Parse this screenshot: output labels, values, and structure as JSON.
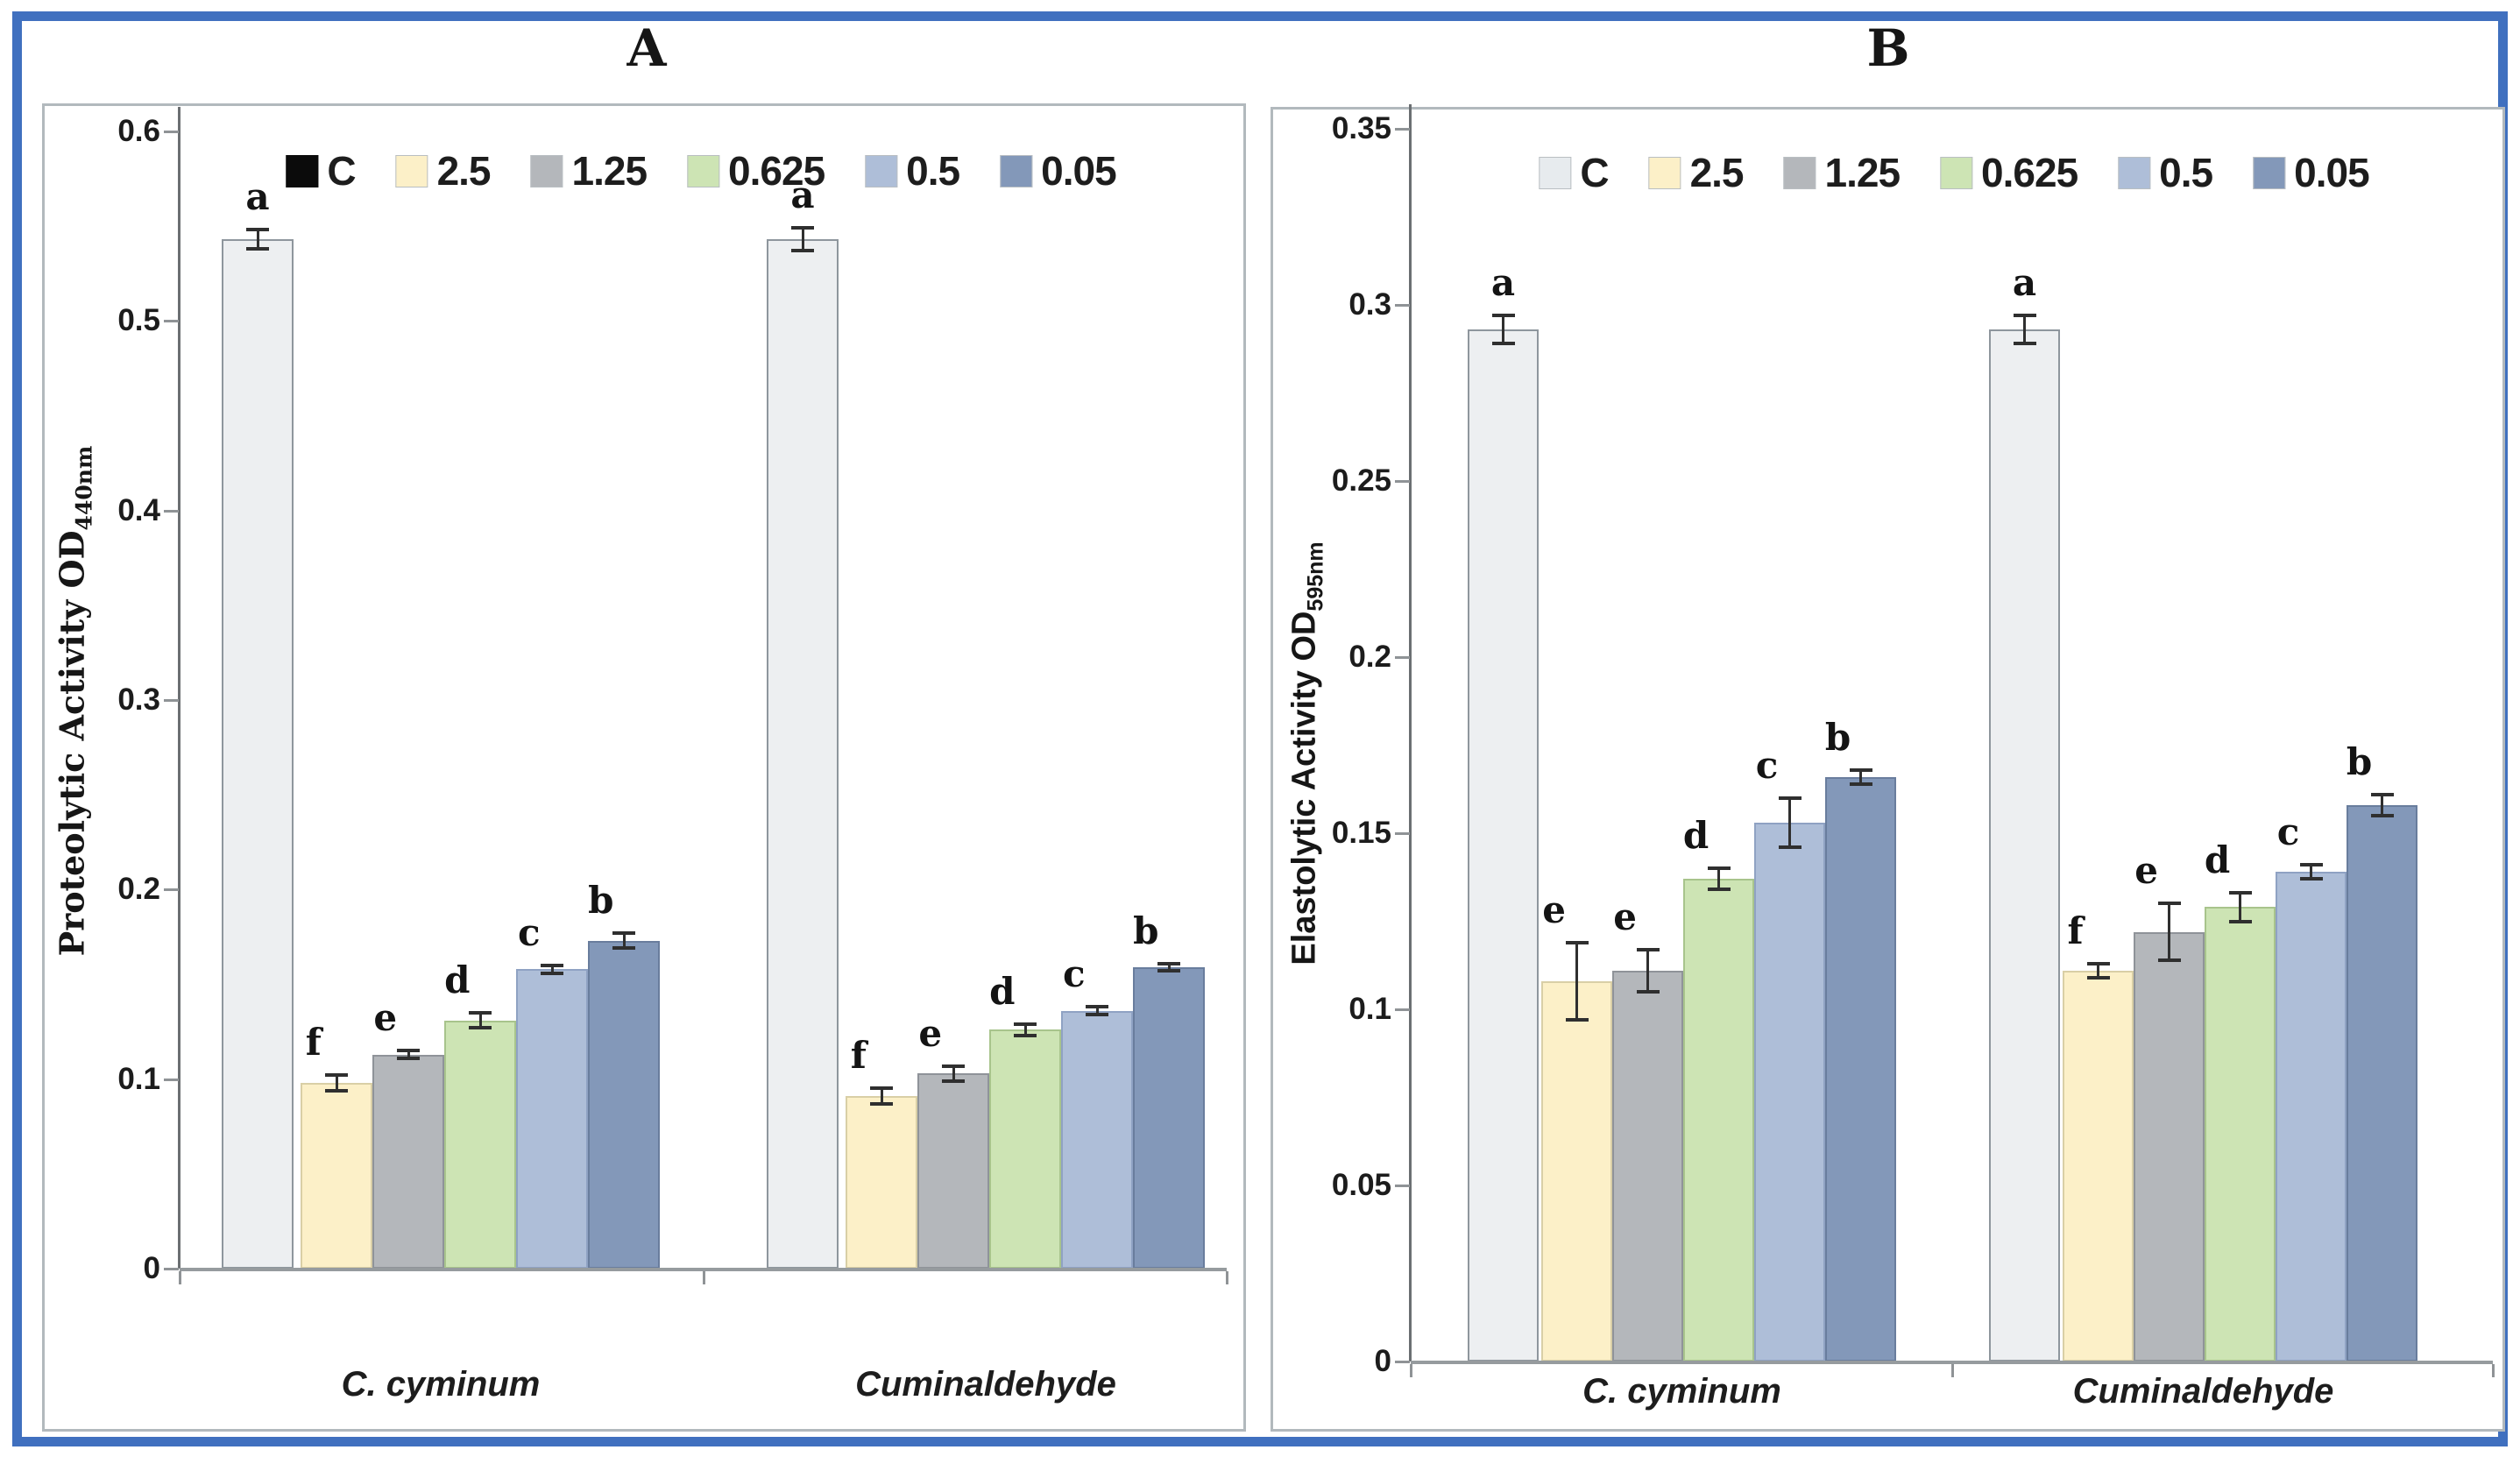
{
  "figure": {
    "outer_border_color": "#4070bf",
    "panel_border_color": "#b2b9bd",
    "background": "#ffffff",
    "error_bar_color": "#2f2f2f"
  },
  "chart_data": [
    {
      "type": "bar",
      "panel_label": "A",
      "ylabel": "Proteolytic Activity OD",
      "ylabel_subscript": "440nm",
      "ylim": [
        0,
        0.6
      ],
      "ytick_labels": [
        "0.6",
        "0.5",
        "0.4",
        "0.3",
        "0.2",
        "0.1",
        "0"
      ],
      "categories": [
        "C. cyminum",
        "Cuminaldehyde"
      ],
      "legend_position": "top-center",
      "grid": false,
      "series": [
        {
          "name": "C",
          "fill": "#edeff1",
          "border": "#8e969d",
          "legend_swatch": "#0b0b0b",
          "values": [
            0.543,
            0.543
          ],
          "errors": [
            0.005,
            0.006
          ],
          "letters": [
            "a",
            "a"
          ]
        },
        {
          "name": "2.5",
          "fill": "#fcf0c8",
          "border": "#d9cfa6",
          "values": [
            0.098,
            0.091
          ],
          "errors": [
            0.004,
            0.004
          ],
          "letters": [
            "f",
            "f"
          ]
        },
        {
          "name": "1.25",
          "fill": "#b4b7bb",
          "border": "#8f9399",
          "values": [
            0.113,
            0.103
          ],
          "errors": [
            0.002,
            0.004
          ],
          "letters": [
            "e",
            "e"
          ]
        },
        {
          "name": "0.625",
          "fill": "#cde4b4",
          "border": "#a8c48c",
          "values": [
            0.131,
            0.126
          ],
          "errors": [
            0.004,
            0.003
          ],
          "letters": [
            "d",
            "d"
          ]
        },
        {
          "name": "0.5",
          "fill": "#aebed8",
          "border": "#8fa2c3",
          "values": [
            0.158,
            0.136
          ],
          "errors": [
            0.002,
            0.002
          ],
          "letters": [
            "c",
            "c"
          ]
        },
        {
          "name": "0.05",
          "fill": "#8398b9",
          "border": "#697d9d",
          "values": [
            0.173,
            0.159
          ],
          "errors": [
            0.004,
            0.002
          ],
          "letters": [
            "b",
            "b"
          ]
        }
      ]
    },
    {
      "type": "bar",
      "panel_label": "B",
      "ylabel": "Elastolytic Activity OD",
      "ylabel_subscript": "595nm",
      "ylim": [
        0,
        0.35
      ],
      "ytick_labels": [
        "0.35",
        "0.3",
        "0.25",
        "0.2",
        "0.15",
        "0.1",
        "0.05",
        "0"
      ],
      "categories": [
        "C. cyminum",
        "Cuminaldehyde"
      ],
      "legend_position": "top-center",
      "grid": false,
      "series": [
        {
          "name": "C",
          "fill": "#edeff1",
          "border": "#8e969d",
          "legend_swatch": "#e7ebee",
          "values": [
            0.293,
            0.293
          ],
          "errors": [
            0.004,
            0.004
          ],
          "letters": [
            "a",
            "a"
          ]
        },
        {
          "name": "2.5",
          "fill": "#fcf0c8",
          "border": "#d9cfa6",
          "values": [
            0.108,
            0.111
          ],
          "errors": [
            0.011,
            0.002
          ],
          "letters": [
            "e",
            "f"
          ]
        },
        {
          "name": "1.25",
          "fill": "#b4b7bb",
          "border": "#8f9399",
          "values": [
            0.111,
            0.122
          ],
          "errors": [
            0.006,
            0.008
          ],
          "letters": [
            "e",
            "e"
          ]
        },
        {
          "name": "0.625",
          "fill": "#cde4b4",
          "border": "#a8c48c",
          "values": [
            0.137,
            0.129
          ],
          "errors": [
            0.003,
            0.004
          ],
          "letters": [
            "d",
            "d"
          ]
        },
        {
          "name": "0.5",
          "fill": "#aebed8",
          "border": "#8fa2c3",
          "values": [
            0.153,
            0.139
          ],
          "errors": [
            0.007,
            0.002
          ],
          "letters": [
            "c",
            "c"
          ]
        },
        {
          "name": "0.05",
          "fill": "#8398b9",
          "border": "#697d9d",
          "values": [
            0.166,
            0.158
          ],
          "errors": [
            0.002,
            0.003
          ],
          "letters": [
            "b",
            "b"
          ]
        }
      ]
    }
  ]
}
